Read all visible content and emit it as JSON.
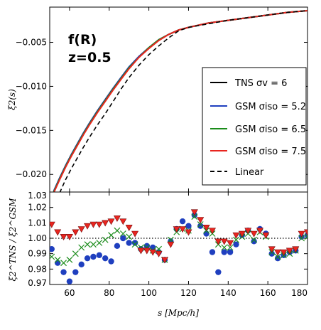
{
  "chart_data": [
    {
      "type": "line",
      "annotation": [
        "f(R)",
        "z=0.5"
      ],
      "ylabel": "ξ2(s)",
      "xlim": [
        50,
        180
      ],
      "ylim": [
        -0.022,
        -0.001
      ],
      "yticks": [
        "−0.005",
        "−0.010",
        "−0.015",
        "−0.020"
      ],
      "legend_position": "lower-right",
      "series": [
        {
          "name": "TNS σv = 6",
          "color": "#000000",
          "dash": "solid",
          "x": [
            52,
            55,
            58,
            61,
            64,
            67,
            70,
            74,
            78,
            82,
            86,
            90,
            95,
            100,
            105,
            110,
            115,
            120,
            130,
            140,
            150,
            160,
            170,
            180
          ],
          "y": [
            -0.0219,
            -0.0204,
            -0.019,
            -0.0177,
            -0.0165,
            -0.0153,
            -0.0142,
            -0.0128,
            -0.0115,
            -0.0102,
            -0.009,
            -0.0078,
            -0.0066,
            -0.0056,
            -0.0047,
            -0.0041,
            -0.0036,
            -0.0033,
            -0.0028,
            -0.0025,
            -0.0022,
            -0.0019,
            -0.0016,
            -0.0014
          ]
        },
        {
          "name": "GSM σiso = 5.2",
          "color": "#1f3fbf",
          "dash": "solid",
          "x": [
            52,
            55,
            58,
            61,
            64,
            67,
            70,
            74,
            78,
            82,
            86,
            90,
            95,
            100,
            105,
            110,
            115,
            120,
            130,
            140,
            150,
            160,
            170,
            180
          ],
          "y": [
            -0.0219,
            -0.0204,
            -0.019,
            -0.0177,
            -0.0165,
            -0.0153,
            -0.0142,
            -0.0128,
            -0.0115,
            -0.0102,
            -0.009,
            -0.0078,
            -0.0066,
            -0.0056,
            -0.0047,
            -0.0041,
            -0.0036,
            -0.0033,
            -0.0028,
            -0.0025,
            -0.0022,
            -0.0019,
            -0.0016,
            -0.0014
          ]
        },
        {
          "name": "GSM σiso = 6.5",
          "color": "#1a8c1a",
          "dash": "solid",
          "x": [
            52,
            55,
            58,
            61,
            64,
            67,
            70,
            74,
            78,
            82,
            86,
            90,
            95,
            100,
            105,
            110,
            115,
            120,
            130,
            140,
            150,
            160,
            170,
            180
          ],
          "y": [
            -0.022,
            -0.0205,
            -0.0191,
            -0.0178,
            -0.0166,
            -0.0154,
            -0.0143,
            -0.0129,
            -0.0116,
            -0.0103,
            -0.0091,
            -0.0079,
            -0.0067,
            -0.0056,
            -0.0047,
            -0.0041,
            -0.0036,
            -0.0033,
            -0.0028,
            -0.0025,
            -0.0022,
            -0.0019,
            -0.0016,
            -0.0014
          ]
        },
        {
          "name": "GSM σiso = 7.5",
          "color": "#e8251f",
          "dash": "solid",
          "x": [
            52,
            55,
            58,
            61,
            64,
            67,
            70,
            74,
            78,
            82,
            86,
            90,
            95,
            100,
            105,
            110,
            115,
            120,
            130,
            140,
            150,
            160,
            170,
            180
          ],
          "y": [
            -0.0221,
            -0.0206,
            -0.0192,
            -0.0179,
            -0.0167,
            -0.0155,
            -0.0144,
            -0.013,
            -0.0117,
            -0.0104,
            -0.0092,
            -0.008,
            -0.0067,
            -0.0057,
            -0.0048,
            -0.0041,
            -0.0036,
            -0.0033,
            -0.0028,
            -0.0025,
            -0.0022,
            -0.0019,
            -0.0016,
            -0.0014
          ]
        },
        {
          "name": "Linear",
          "color": "#000000",
          "dash": "dashed",
          "x": [
            55,
            58,
            61,
            64,
            67,
            70,
            74,
            78,
            82,
            86,
            90,
            95,
            100,
            105,
            110,
            115,
            120,
            130,
            140,
            150,
            160,
            170,
            180
          ],
          "y": [
            -0.0221,
            -0.0206,
            -0.0193,
            -0.0181,
            -0.0169,
            -0.0158,
            -0.0144,
            -0.0131,
            -0.0117,
            -0.0103,
            -0.009,
            -0.0076,
            -0.0064,
            -0.0054,
            -0.0045,
            -0.0037,
            -0.0033,
            -0.0029,
            -0.0025,
            -0.0022,
            -0.0019,
            -0.0016,
            -0.0014
          ]
        }
      ]
    },
    {
      "type": "scatter",
      "xlabel": "s [Mpc/h]",
      "ylabel": "ξ2^TNS / ξ2^GSM",
      "xlim": [
        50,
        180
      ],
      "ylim": [
        0.97,
        1.03
      ],
      "xticks": [
        "60",
        "80",
        "100",
        "120",
        "140",
        "160",
        "180"
      ],
      "yticks": [
        "1.03",
        "1.02",
        "1.01",
        "1.00",
        "0.99",
        "0.98",
        "0.97"
      ],
      "reference_line": 1.0,
      "series": [
        {
          "name": "GSM σiso = 5.2",
          "marker": "circle",
          "color": "#1f3fbf",
          "x": [
            51,
            54,
            57,
            60,
            63,
            66,
            69,
            72,
            75,
            78,
            81,
            84,
            87,
            90,
            93,
            96,
            99,
            102,
            105,
            108,
            111,
            114,
            117,
            120,
            123,
            126,
            129,
            132,
            135,
            138,
            141,
            144,
            147,
            150,
            153,
            156,
            159,
            162,
            165,
            168,
            171,
            174,
            177,
            180
          ],
          "y": [
            0.993,
            0.984,
            0.978,
            0.972,
            0.978,
            0.983,
            0.987,
            0.988,
            0.989,
            0.987,
            0.985,
            0.995,
            1.0,
            0.997,
            0.997,
            0.993,
            0.995,
            0.994,
            0.991,
            0.986,
            0.998,
            1.006,
            1.011,
            1.008,
            1.015,
            1.008,
            1.003,
            0.991,
            0.978,
            0.991,
            0.991,
            0.996,
            1.002,
            1.005,
            0.998,
            1.006,
            1.003,
            0.99,
            0.987,
            0.989,
            0.991,
            0.992,
            1.001,
            1.002
          ]
        },
        {
          "name": "GSM σiso = 6.5",
          "marker": "x",
          "color": "#1a8c1a",
          "x": [
            51,
            54,
            57,
            60,
            63,
            66,
            69,
            72,
            75,
            78,
            81,
            84,
            87,
            90,
            93,
            96,
            99,
            102,
            105,
            108,
            111,
            114,
            117,
            120,
            123,
            126,
            129,
            132,
            135,
            138,
            141,
            144,
            147,
            150,
            153,
            156,
            159,
            162,
            165,
            168,
            171,
            174,
            177,
            180
          ],
          "y": [
            0.988,
            0.986,
            0.984,
            0.986,
            0.99,
            0.994,
            0.996,
            0.996,
            0.997,
            0.999,
            1.002,
            1.005,
            1.003,
            1.001,
            0.996,
            0.994,
            0.994,
            0.992,
            0.993,
            0.986,
            0.999,
            1.004,
            1.006,
            1.005,
            1.014,
            1.009,
            1.005,
            1.003,
            0.996,
            0.994,
            0.994,
            0.999,
            1.001,
            1.003,
            0.999,
            1.004,
            1.001,
            0.991,
            0.988,
            0.989,
            0.99,
            0.992,
            1.0,
            1.001
          ]
        },
        {
          "name": "GSM σiso = 7.5",
          "marker": "triangle-down",
          "color": "#e8251f",
          "x": [
            51,
            54,
            57,
            60,
            63,
            66,
            69,
            72,
            75,
            78,
            81,
            84,
            87,
            90,
            93,
            96,
            99,
            102,
            105,
            108,
            111,
            114,
            117,
            120,
            123,
            126,
            129,
            132,
            135,
            138,
            141,
            144,
            147,
            150,
            153,
            156,
            159,
            162,
            165,
            168,
            171,
            174,
            177,
            180
          ],
          "y": [
            1.009,
            1.004,
            1.001,
            1.001,
            1.004,
            1.006,
            1.008,
            1.009,
            1.009,
            1.01,
            1.011,
            1.013,
            1.011,
            1.007,
            1.003,
            0.992,
            0.992,
            0.991,
            0.99,
            0.986,
            0.996,
            1.006,
            1.006,
            1.004,
            1.017,
            1.012,
            1.007,
            1.005,
            0.998,
            0.998,
            0.997,
            1.002,
            1.003,
            1.005,
            1.003,
            1.005,
            1.002,
            0.993,
            0.991,
            0.991,
            0.992,
            0.993,
            1.003,
            1.004
          ]
        }
      ]
    }
  ]
}
